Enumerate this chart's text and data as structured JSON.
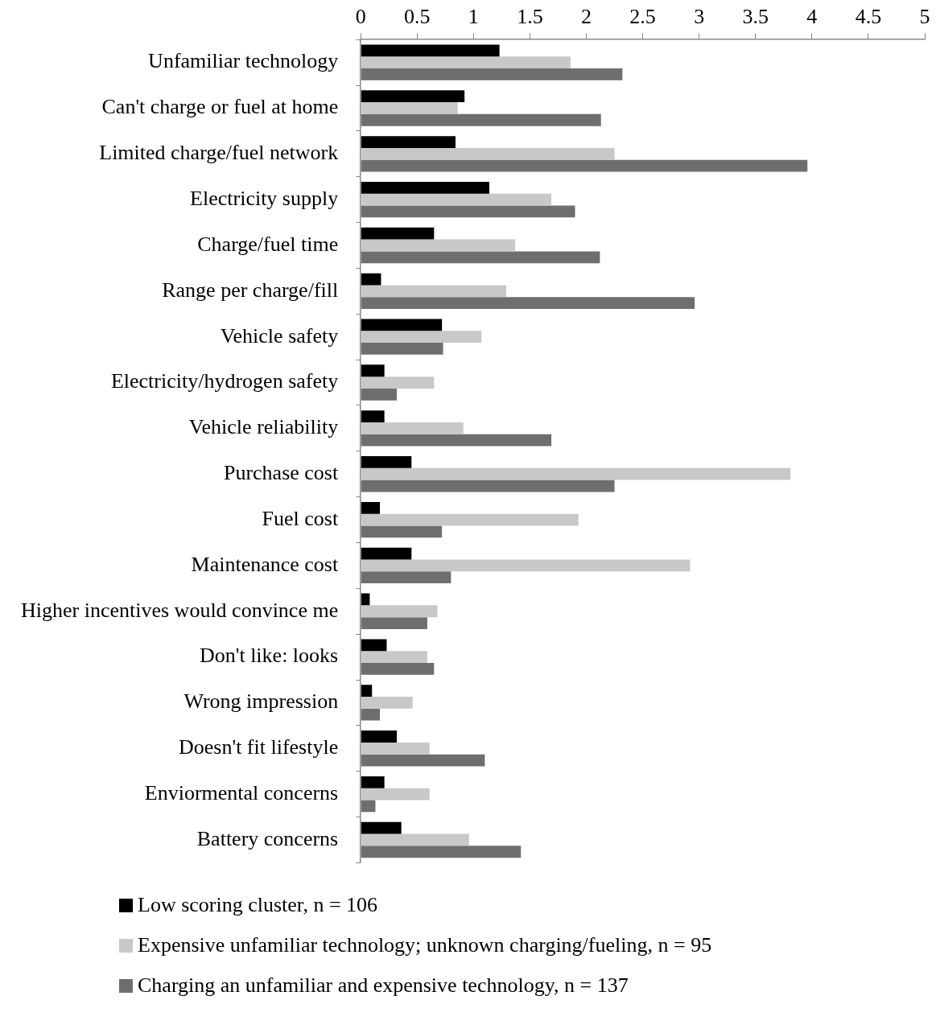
{
  "chart_data": {
    "type": "bar",
    "orientation": "horizontal",
    "categories": [
      "Unfamiliar technology",
      "Can't charge or fuel at home",
      "Limited charge/fuel network",
      "Electricity supply",
      "Charge/fuel time",
      "Range per charge/fill",
      "Vehicle safety",
      "Electricity/hydrogen safety",
      "Vehicle reliability",
      "Purchase cost",
      "Fuel cost",
      "Maintenance cost",
      "Higher incentives would convince me",
      "Don't like: looks",
      "Wrong impression",
      "Doesn't fit lifestyle",
      "Enviormental concerns",
      "Battery concerns"
    ],
    "series": [
      {
        "name": "Low scoring cluster, n = 106",
        "color": "#000000",
        "values": [
          1.23,
          0.92,
          0.84,
          1.14,
          0.65,
          0.18,
          0.72,
          0.21,
          0.21,
          0.45,
          0.17,
          0.45,
          0.08,
          0.23,
          0.1,
          0.32,
          0.21,
          0.36
        ]
      },
      {
        "name": "Expensive unfamiliar technology; unknown charging/fueling, n = 95",
        "color": "#c8c8c8",
        "values": [
          1.86,
          0.86,
          2.25,
          1.69,
          1.37,
          1.29,
          1.07,
          0.65,
          0.91,
          3.81,
          1.93,
          2.92,
          0.68,
          0.59,
          0.46,
          0.61,
          0.61,
          0.96
        ]
      },
      {
        "name": "Charging an unfamiliar and expensive technology, n = 137",
        "color": "#6e6e6e",
        "values": [
          2.32,
          2.13,
          3.96,
          1.9,
          2.12,
          2.96,
          0.73,
          0.32,
          1.69,
          2.25,
          0.72,
          0.8,
          0.59,
          0.65,
          0.17,
          1.1,
          0.13,
          1.42
        ]
      }
    ],
    "xlim": [
      0,
      5
    ],
    "xticks": [
      0,
      0.5,
      1,
      1.5,
      2,
      2.5,
      3,
      3.5,
      4,
      4.5,
      5
    ],
    "grid": false,
    "legend": "bottom"
  }
}
